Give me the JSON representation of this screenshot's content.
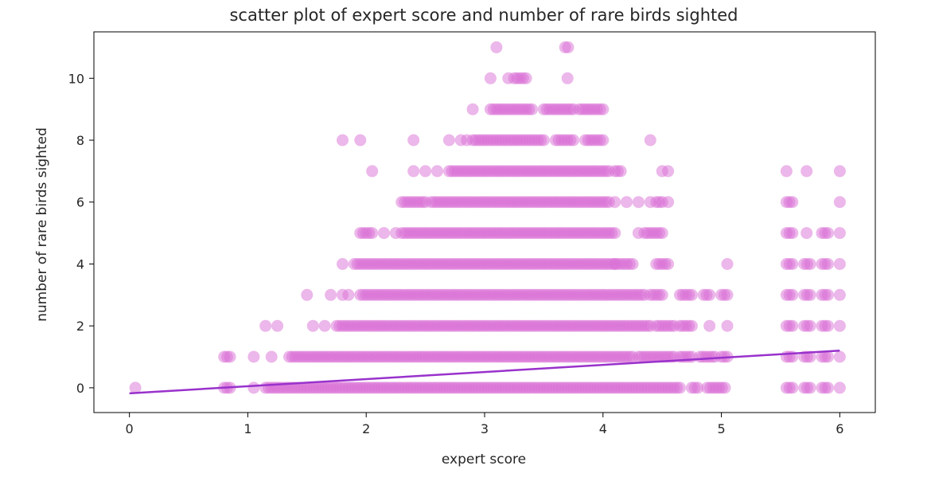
{
  "chart_data": {
    "type": "scatter",
    "title": "scatter plot of expert score and number of rare birds sighted",
    "xlabel": "expert score",
    "ylabel": "number of rare birds sighted",
    "xlim": [
      -0.3,
      6.3
    ],
    "ylim": [
      -0.8,
      11.5
    ],
    "xticks": [
      0,
      1,
      2,
      3,
      4,
      5,
      6
    ],
    "yticks": [
      0,
      2,
      4,
      6,
      8,
      10
    ],
    "grid": false,
    "colors": {
      "points": "#da70d6",
      "fit_line": "#9932cc"
    },
    "points_by_level": [
      {
        "y": 0,
        "ranges": [
          [
            0.8,
            0.85
          ],
          [
            1.05,
            1.05
          ],
          [
            1.15,
            4.65
          ],
          [
            4.75,
            4.8
          ],
          [
            4.88,
            5.05
          ],
          [
            5.55,
            5.6
          ],
          [
            5.7,
            5.75
          ],
          [
            5.85,
            5.9
          ],
          [
            6.0,
            6.0
          ]
        ],
        "singles": [
          0.05
        ]
      },
      {
        "y": 1,
        "ranges": [
          [
            0.8,
            0.85
          ],
          [
            1.35,
            4.25
          ],
          [
            4.3,
            4.6
          ],
          [
            4.65,
            4.75
          ],
          [
            4.82,
            4.95
          ],
          [
            5.0,
            5.05
          ],
          [
            5.55,
            5.6
          ],
          [
            5.7,
            5.75
          ],
          [
            5.85,
            5.9
          ],
          [
            6.0,
            6.0
          ]
        ],
        "singles": [
          1.05,
          1.2
        ]
      },
      {
        "y": 2,
        "ranges": [
          [
            1.75,
            4.4
          ],
          [
            4.45,
            4.6
          ],
          [
            4.65,
            4.75
          ],
          [
            4.9,
            4.9
          ],
          [
            5.05,
            5.05
          ],
          [
            5.55,
            5.6
          ],
          [
            5.7,
            5.75
          ],
          [
            5.85,
            5.9
          ],
          [
            6.0,
            6.0
          ]
        ],
        "singles": [
          1.15,
          1.25,
          1.55,
          1.65
        ]
      },
      {
        "y": 3,
        "ranges": [
          [
            1.95,
            4.35
          ],
          [
            4.4,
            4.5
          ],
          [
            4.65,
            4.75
          ],
          [
            4.85,
            4.9
          ],
          [
            5.0,
            5.05
          ],
          [
            5.55,
            5.6
          ],
          [
            5.7,
            5.75
          ],
          [
            5.85,
            5.9
          ],
          [
            6.0,
            6.0
          ]
        ],
        "singles": [
          1.5,
          1.7,
          1.8,
          1.85
        ]
      },
      {
        "y": 4,
        "ranges": [
          [
            1.9,
            4.1
          ],
          [
            4.1,
            4.25
          ],
          [
            4.45,
            4.55
          ],
          [
            5.05,
            5.05
          ],
          [
            5.55,
            5.6
          ],
          [
            5.7,
            5.75
          ],
          [
            5.85,
            5.9
          ],
          [
            6.0,
            6.0
          ]
        ],
        "singles": [
          1.8
        ]
      },
      {
        "y": 5,
        "ranges": [
          [
            1.95,
            2.05
          ],
          [
            2.3,
            4.1
          ],
          [
            4.35,
            4.5
          ],
          [
            5.55,
            5.6
          ],
          [
            5.85,
            5.9
          ],
          [
            6.0,
            6.0
          ]
        ],
        "singles": [
          2.15,
          2.25,
          4.3,
          5.72
        ]
      },
      {
        "y": 6,
        "ranges": [
          [
            2.3,
            2.5
          ],
          [
            2.55,
            4.05
          ],
          [
            4.45,
            4.5
          ],
          [
            5.55,
            5.6
          ]
        ],
        "singles": [
          4.1,
          4.2,
          4.3,
          4.4,
          4.55,
          6.0
        ]
      },
      {
        "y": 7,
        "ranges": [
          [
            2.7,
            4.05
          ],
          [
            4.1,
            4.15
          ]
        ],
        "singles": [
          2.05,
          2.4,
          2.5,
          2.6,
          4.5,
          4.55,
          5.55,
          5.72,
          6.0
        ]
      },
      {
        "y": 8,
        "ranges": [
          [
            2.9,
            3.5
          ],
          [
            3.6,
            3.75
          ],
          [
            3.85,
            4.0
          ]
        ],
        "singles": [
          1.8,
          1.95,
          2.4,
          2.7,
          2.8,
          2.85,
          4.4
        ]
      },
      {
        "y": 9,
        "ranges": [
          [
            2.9,
            2.9
          ],
          [
            3.05,
            3.4
          ],
          [
            3.5,
            3.75
          ],
          [
            3.8,
            4.0
          ]
        ],
        "singles": []
      },
      {
        "y": 10,
        "ranges": [
          [
            3.25,
            3.35
          ]
        ],
        "singles": [
          3.2,
          3.05,
          3.7
        ]
      },
      {
        "y": 11,
        "ranges": [
          [
            3.68,
            3.72
          ]
        ],
        "singles": [
          3.1
        ]
      }
    ],
    "fit_line": {
      "x": [
        0.0,
        6.0
      ],
      "y": [
        -0.18,
        1.2
      ]
    }
  }
}
